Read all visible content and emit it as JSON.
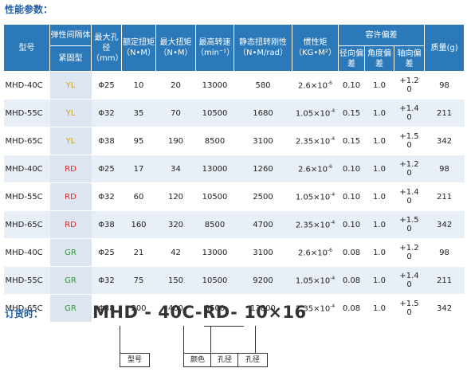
{
  "section_title": "性能参数：",
  "headers": {
    "model": "型号",
    "elastic_top": "弹性间隔体",
    "elastic_bottom": "紧固型",
    "bore": "最大孔径（mm）",
    "rated_torque": "额定扭矩（N•M）",
    "max_torque": "最大扭矩（N•M）",
    "max_speed": "最高转速（min⁻¹）",
    "static_stiffness": "静态扭转刚性（N•M/rad）",
    "inertia": "惯性矩（KG•M²）",
    "tolerance": "容许偏差",
    "radial": "径向偏差",
    "angular": "角度偏差",
    "axial": "轴向偏差",
    "mass": "质量(g)"
  },
  "rows": [
    {
      "model": "MHD-40C",
      "elastic": "YL",
      "color": "yl",
      "bore": "Φ25",
      "rated": "10",
      "max": "20",
      "speed": "13000",
      "stiff": "580",
      "inertia_base": "2.6×10",
      "inertia_exp": "-6",
      "radial": "0.10",
      "angular": "1.0",
      "axial_top": "+1.2",
      "axial_bottom": "0",
      "mass": "98"
    },
    {
      "model": "MHD-55C",
      "elastic": "YL",
      "color": "yl",
      "bore": "Φ32",
      "rated": "35",
      "max": "70",
      "speed": "10500",
      "stiff": "1680",
      "inertia_base": "1.05×10",
      "inertia_exp": "-4",
      "radial": "0.15",
      "angular": "1.0",
      "axial_top": "+1.4",
      "axial_bottom": "0",
      "mass": "211"
    },
    {
      "model": "MHD-65C",
      "elastic": "YL",
      "color": "yl",
      "bore": "Φ38",
      "rated": "95",
      "max": "190",
      "speed": "8500",
      "stiff": "3100",
      "inertia_base": "2.35×10",
      "inertia_exp": "-4",
      "radial": "0.15",
      "angular": "1.0",
      "axial_top": "+1.5",
      "axial_bottom": "0",
      "mass": "342"
    },
    {
      "model": "MHD-40C",
      "elastic": "RD",
      "color": "rd",
      "bore": "Φ25",
      "rated": "17",
      "max": "34",
      "speed": "13000",
      "stiff": "1260",
      "inertia_base": "2.6×10",
      "inertia_exp": "-6",
      "radial": "0.10",
      "angular": "1.0",
      "axial_top": "+1.2",
      "axial_bottom": "0",
      "mass": "98"
    },
    {
      "model": "MHD-55C",
      "elastic": "RD",
      "color": "rd",
      "bore": "Φ32",
      "rated": "60",
      "max": "120",
      "speed": "10500",
      "stiff": "2500",
      "inertia_base": "1.05×10",
      "inertia_exp": "-4",
      "radial": "0.10",
      "angular": "1.0",
      "axial_top": "+1.4",
      "axial_bottom": "0",
      "mass": "211"
    },
    {
      "model": "MHD-65C",
      "elastic": "RD",
      "color": "rd",
      "bore": "Φ38",
      "rated": "160",
      "max": "320",
      "speed": "8500",
      "stiff": "4700",
      "inertia_base": "2.35×10",
      "inertia_exp": "-4",
      "radial": "0.10",
      "angular": "1.0",
      "axial_top": "+1.5",
      "axial_bottom": "0",
      "mass": "342"
    },
    {
      "model": "MHD-40C",
      "elastic": "GR",
      "color": "gr",
      "bore": "Φ25",
      "rated": "21",
      "max": "42",
      "speed": "13000",
      "stiff": "3100",
      "inertia_base": "2.6×10",
      "inertia_exp": "-6",
      "radial": "0.08",
      "angular": "1.0",
      "axial_top": "+1.2",
      "axial_bottom": "0",
      "mass": "98"
    },
    {
      "model": "MHD-55C",
      "elastic": "GR",
      "color": "gr",
      "bore": "Φ32",
      "rated": "75",
      "max": "150",
      "speed": "10500",
      "stiff": "9200",
      "inertia_base": "1.05×10",
      "inertia_exp": "-4",
      "radial": "0.08",
      "angular": "1.0",
      "axial_top": "+1.4",
      "axial_bottom": "0",
      "mass": "211"
    },
    {
      "model": "MHD-65C",
      "elastic": "GR",
      "color": "gr",
      "bore": "Φ38",
      "rated": "200",
      "max": "400",
      "speed": "8500",
      "stiff": "13800",
      "inertia_base": "2.35×10",
      "inertia_exp": "-4",
      "radial": "0.08",
      "angular": "1.0",
      "axial_top": "+1.5",
      "axial_bottom": "0",
      "mass": "342"
    }
  ],
  "order": {
    "title": "订货时：",
    "code": "MHD - 40C-RD- 10×16",
    "label_model": "型号",
    "label_color": "颜色",
    "label_bore1": "孔径",
    "label_bore2": "孔径"
  }
}
